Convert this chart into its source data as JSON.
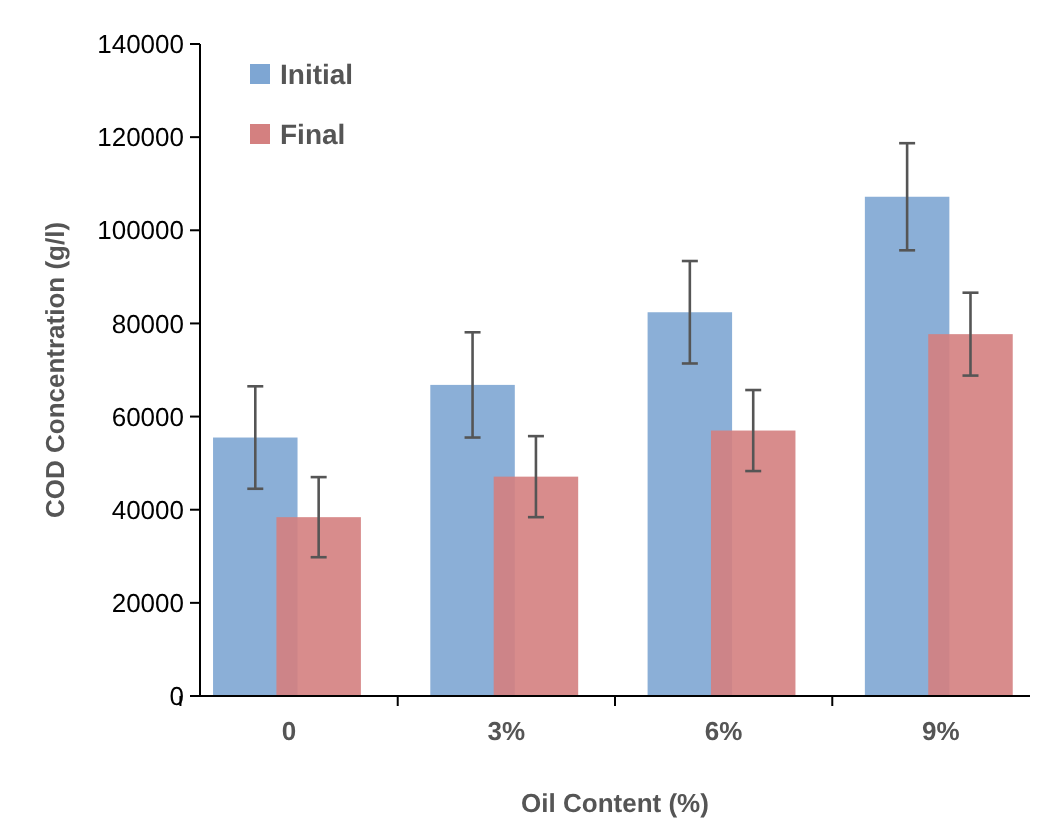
{
  "chart_data": {
    "type": "bar",
    "xlabel": "Oil Content (%)",
    "ylabel": "COD  Concentration (g/l)",
    "categories": [
      "0",
      "3%",
      "6%",
      "9%"
    ],
    "series": [
      {
        "name": "Initial",
        "color": "#7ea6d3",
        "values": [
          55500,
          66800,
          82400,
          107200
        ],
        "errors": [
          11000,
          11300,
          11000,
          11500
        ]
      },
      {
        "name": "Final",
        "color": "#d48080",
        "values": [
          38400,
          47100,
          57000,
          77700
        ],
        "errors": [
          8600,
          8700,
          8700,
          8900
        ]
      }
    ],
    "ylim": [
      0,
      140000
    ],
    "yticks": [
      0,
      20000,
      40000,
      60000,
      80000,
      100000,
      120000,
      140000
    ],
    "legend": "top left"
  }
}
